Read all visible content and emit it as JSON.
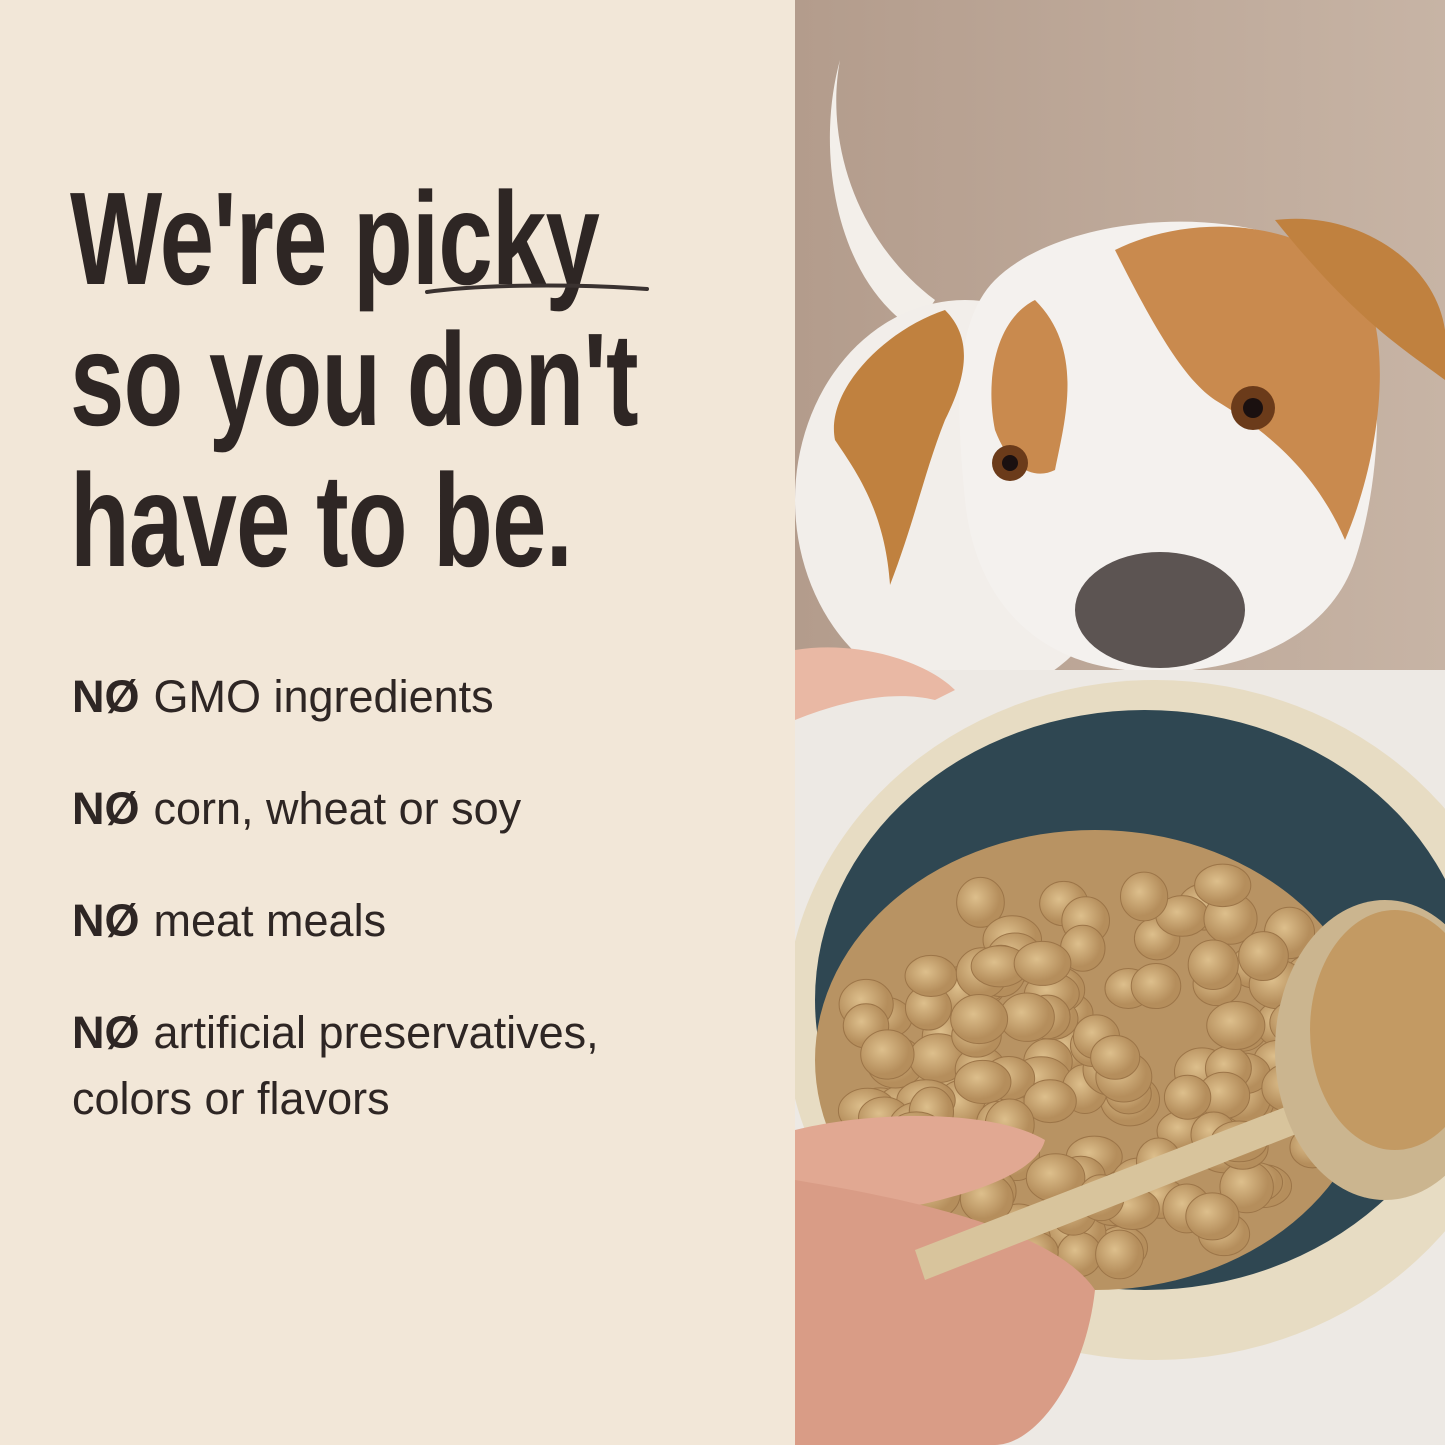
{
  "headline": {
    "line1_prefix": "We're",
    "line1_emphasis": "picky",
    "line2": "so you don't",
    "line3": "have to be."
  },
  "claims": [
    {
      "prefix": "NØ",
      "text": "GMO ingredients"
    },
    {
      "prefix": "NØ",
      "text": "corn, wheat or soy"
    },
    {
      "prefix": "NØ",
      "text": "meat meals"
    },
    {
      "prefix": "NØ",
      "text": "artificial preservatives,",
      "text2": "colors or flavors"
    }
  ],
  "colors": {
    "background": "#f2e7d8",
    "text": "#2e2624",
    "bowl": "#2f4752",
    "kibble": "#c9a572"
  }
}
